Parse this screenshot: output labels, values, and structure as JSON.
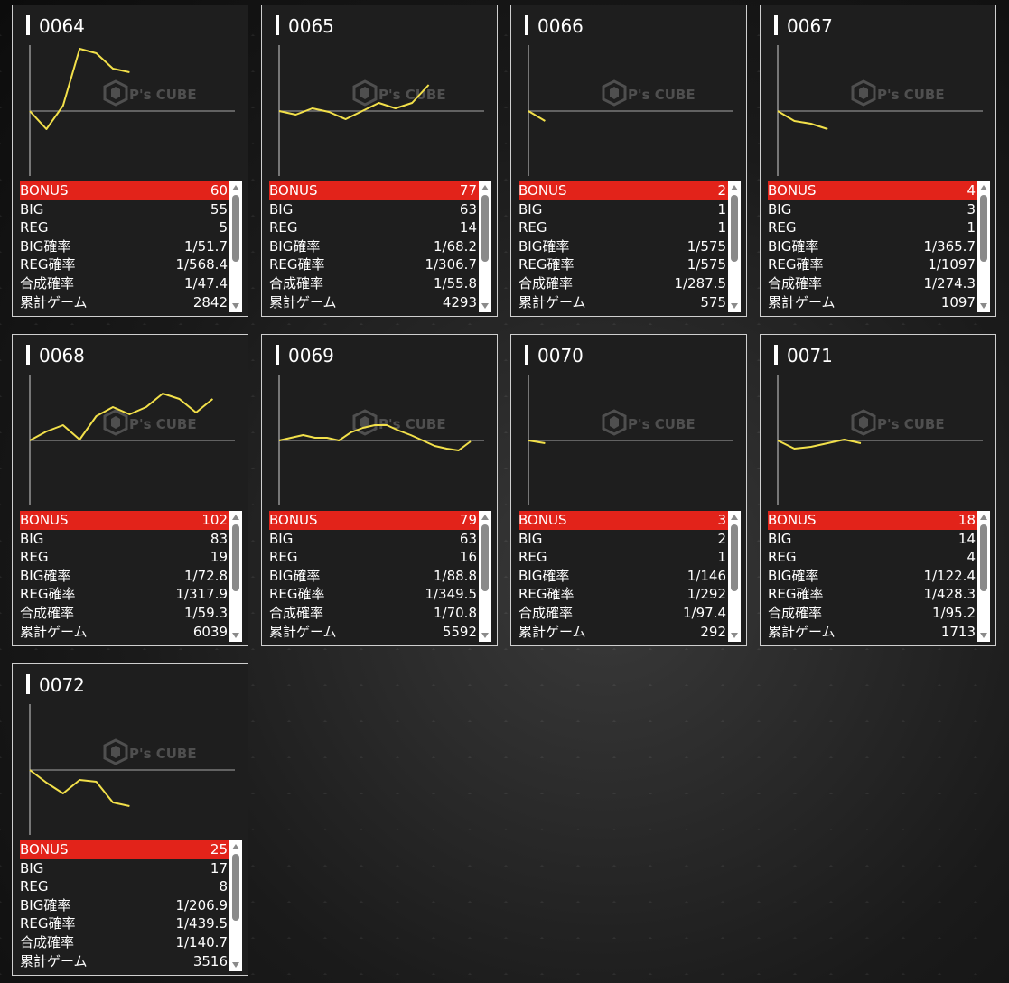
{
  "watermark": {
    "brand": "P's CUBE"
  },
  "colors": {
    "line": "#f2e04a",
    "bonus_bar": "#e2231a",
    "baseline": "#8a8a8a"
  },
  "machines": [
    {
      "id": "0064",
      "stats": [
        {
          "label": "BONUS",
          "value": "60"
        },
        {
          "label": "BIG",
          "value": "55"
        },
        {
          "label": "REG",
          "value": "5"
        },
        {
          "label": "BIG確率",
          "value": "1/51.7"
        },
        {
          "label": "REG確率",
          "value": "1/568.4"
        },
        {
          "label": "合成確率",
          "value": "1/47.4"
        },
        {
          "label": "累計ゲーム",
          "value": "2842"
        }
      ],
      "graph": [
        0,
        -0.2,
        0.06,
        0.69,
        0.64,
        0.47,
        0.43
      ]
    },
    {
      "id": "0065",
      "stats": [
        {
          "label": "BONUS",
          "value": "77"
        },
        {
          "label": "BIG",
          "value": "63"
        },
        {
          "label": "REG",
          "value": "14"
        },
        {
          "label": "BIG確率",
          "value": "1/68.2"
        },
        {
          "label": "REG確率",
          "value": "1/306.7"
        },
        {
          "label": "合成確率",
          "value": "1/55.8"
        },
        {
          "label": "累計ゲーム",
          "value": "4293"
        }
      ],
      "graph": [
        0,
        -0.04,
        0.03,
        -0.01,
        -0.09,
        0,
        0.09,
        0.03,
        0.09,
        0.29
      ]
    },
    {
      "id": "0066",
      "stats": [
        {
          "label": "BONUS",
          "value": "2"
        },
        {
          "label": "BIG",
          "value": "1"
        },
        {
          "label": "REG",
          "value": "1"
        },
        {
          "label": "BIG確率",
          "value": "1/575"
        },
        {
          "label": "REG確率",
          "value": "1/575"
        },
        {
          "label": "合成確率",
          "value": "1/287.5"
        },
        {
          "label": "累計ゲーム",
          "value": "575"
        }
      ],
      "graph": [
        0,
        -0.11
      ]
    },
    {
      "id": "0067",
      "stats": [
        {
          "label": "BONUS",
          "value": "4"
        },
        {
          "label": "BIG",
          "value": "3"
        },
        {
          "label": "REG",
          "value": "1"
        },
        {
          "label": "BIG確率",
          "value": "1/365.7"
        },
        {
          "label": "REG確率",
          "value": "1/1097"
        },
        {
          "label": "合成確率",
          "value": "1/274.3"
        },
        {
          "label": "累計ゲーム",
          "value": "1097"
        }
      ],
      "graph": [
        0,
        -0.11,
        -0.14,
        -0.2
      ]
    },
    {
      "id": "0068",
      "stats": [
        {
          "label": "BONUS",
          "value": "102"
        },
        {
          "label": "BIG",
          "value": "83"
        },
        {
          "label": "REG",
          "value": "19"
        },
        {
          "label": "BIG確率",
          "value": "1/72.8"
        },
        {
          "label": "REG確率",
          "value": "1/317.9"
        },
        {
          "label": "合成確率",
          "value": "1/59.3"
        },
        {
          "label": "累計ゲーム",
          "value": "6039"
        }
      ],
      "graph": [
        0,
        0.1,
        0.17,
        0.01,
        0.27,
        0.37,
        0.29,
        0.37,
        0.52,
        0.46,
        0.31,
        0.46
      ]
    },
    {
      "id": "0069",
      "stats": [
        {
          "label": "BONUS",
          "value": "79"
        },
        {
          "label": "BIG",
          "value": "63"
        },
        {
          "label": "REG",
          "value": "16"
        },
        {
          "label": "BIG確率",
          "value": "1/88.8"
        },
        {
          "label": "REG確率",
          "value": "1/349.5"
        },
        {
          "label": "合成確率",
          "value": "1/70.8"
        },
        {
          "label": "累計ゲーム",
          "value": "5592"
        }
      ],
      "graph": [
        0,
        0.03,
        0.06,
        0.03,
        0.03,
        0,
        0.09,
        0.14,
        0.17,
        0.17,
        0.11,
        0.06,
        0,
        -0.06,
        -0.09,
        -0.11,
        -0.01
      ]
    },
    {
      "id": "0070",
      "stats": [
        {
          "label": "BONUS",
          "value": "3"
        },
        {
          "label": "BIG",
          "value": "2"
        },
        {
          "label": "REG",
          "value": "1"
        },
        {
          "label": "BIG確率",
          "value": "1/146"
        },
        {
          "label": "REG確率",
          "value": "1/292"
        },
        {
          "label": "合成確率",
          "value": "1/97.4"
        },
        {
          "label": "累計ゲーム",
          "value": "292"
        }
      ],
      "graph": [
        0,
        -0.03
      ]
    },
    {
      "id": "0071",
      "stats": [
        {
          "label": "BONUS",
          "value": "18"
        },
        {
          "label": "BIG",
          "value": "14"
        },
        {
          "label": "REG",
          "value": "4"
        },
        {
          "label": "BIG確率",
          "value": "1/122.4"
        },
        {
          "label": "REG確率",
          "value": "1/428.3"
        },
        {
          "label": "合成確率",
          "value": "1/95.2"
        },
        {
          "label": "累計ゲーム",
          "value": "1713"
        }
      ],
      "graph": [
        0,
        -0.09,
        -0.07,
        -0.03,
        0.01,
        -0.03
      ]
    },
    {
      "id": "0072",
      "stats": [
        {
          "label": "BONUS",
          "value": "25"
        },
        {
          "label": "BIG",
          "value": "17"
        },
        {
          "label": "REG",
          "value": "8"
        },
        {
          "label": "BIG確率",
          "value": "1/206.9"
        },
        {
          "label": "REG確率",
          "value": "1/439.5"
        },
        {
          "label": "合成確率",
          "value": "1/140.7"
        },
        {
          "label": "累計ゲーム",
          "value": "3516"
        }
      ],
      "graph": [
        0,
        -0.14,
        -0.26,
        -0.11,
        -0.13,
        -0.36,
        -0.4
      ]
    }
  ]
}
